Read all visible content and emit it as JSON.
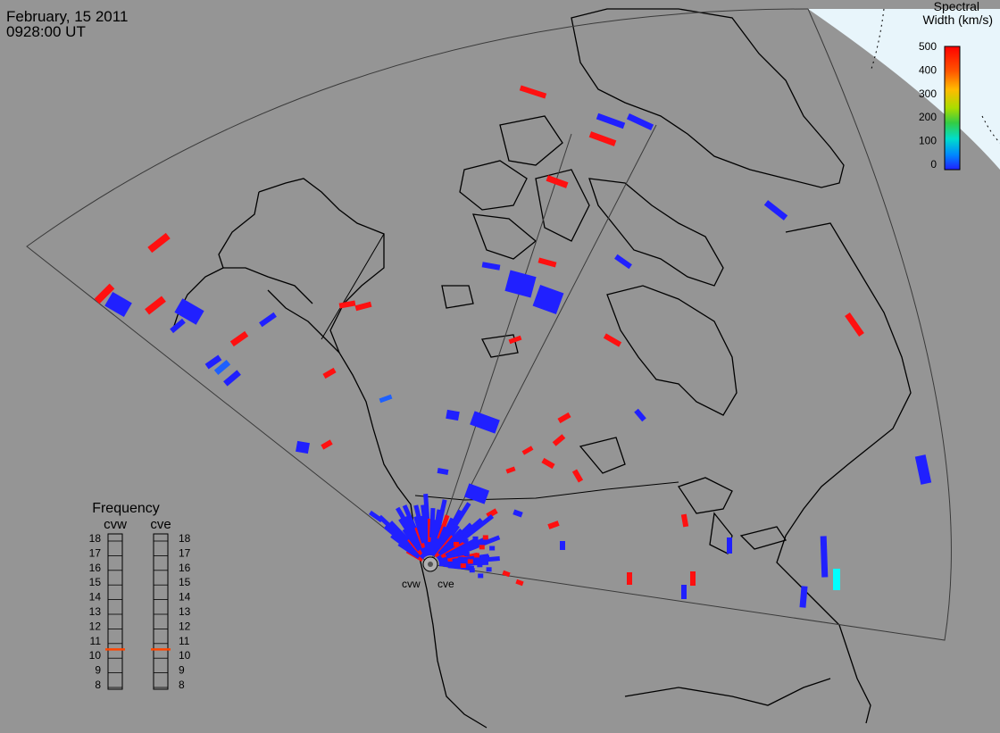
{
  "header": {
    "date": "February, 15 2011",
    "time": "0928:00 UT"
  },
  "legend": {
    "title_line1": "Spectral",
    "title_line2": "Width (km/s)",
    "ticks": [
      "500",
      "400",
      "300",
      "200",
      "100",
      "0"
    ],
    "colors": [
      "#ff0000",
      "#ff9900",
      "#ffee00",
      "#33cc33",
      "#00dddd",
      "#0066ff",
      "#2020ff"
    ]
  },
  "frequency_panel": {
    "title": "Frequency",
    "radars": [
      {
        "name": "cvw",
        "frequency_mhz": 10.6
      },
      {
        "name": "cve",
        "frequency_mhz": 10.6
      }
    ],
    "ticks": [
      "18",
      "17",
      "16",
      "15",
      "14",
      "13",
      "12",
      "11",
      "10",
      "9",
      "8"
    ],
    "indicator_color": "#ff4400"
  },
  "radar_sites": {
    "west_label": "cvw",
    "east_label": "cve"
  },
  "colors": {
    "background": "#959595",
    "coastline": "#000000",
    "fov_outline": "#444444",
    "polar_region": "#e8f5fb",
    "low_width": "#2020ff",
    "high_width": "#ff1010",
    "mid_width": "#1e60ff",
    "cyan_width": "#00ffff"
  }
}
